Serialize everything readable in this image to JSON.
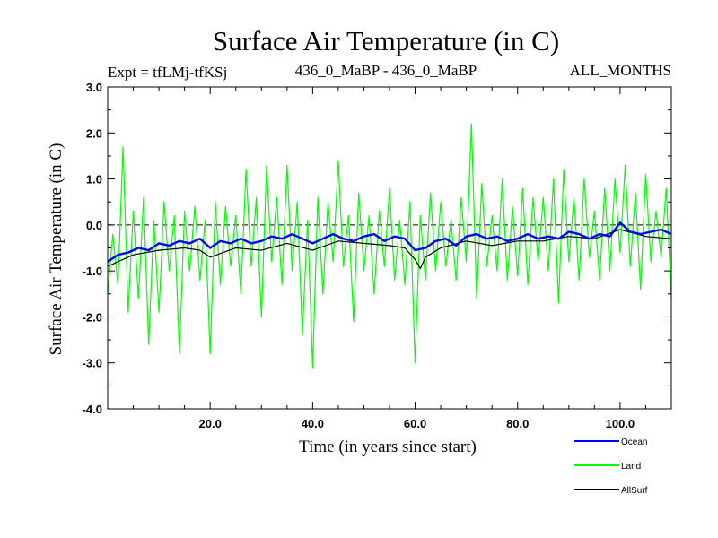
{
  "chart_data": {
    "type": "line",
    "title": "Surface Air Temperature (in C)",
    "subtitle_left": "Expt = tfLMj-tfKSj",
    "subtitle_center": "436_0_MaBP - 436_0_MaBP",
    "subtitle_right": "ALL_MONTHS",
    "xlabel": "Time (in years since start)",
    "ylabel": "Surface Air Temperature (in C)",
    "xlim": [
      0,
      110
    ],
    "ylim": [
      -4.0,
      3.0
    ],
    "xticks": [
      20,
      40,
      60,
      80,
      100
    ],
    "xtick_labels": [
      "20.0",
      "40.0",
      "60.0",
      "80.0",
      "100.0"
    ],
    "yticks": [
      -4,
      -3,
      -2,
      -1,
      0,
      1,
      2,
      3
    ],
    "ytick_labels": [
      "-4.0",
      "-3.0",
      "-2.0",
      "-1.0",
      "0.0",
      "1.0",
      "2.0",
      "3.0"
    ],
    "reference_line": 0.0,
    "series": [
      {
        "name": "Land",
        "color": "#00ff00",
        "x": [
          0,
          1,
          2,
          3,
          4,
          5,
          6,
          7,
          8,
          9,
          10,
          11,
          12,
          13,
          14,
          15,
          16,
          17,
          18,
          19,
          20,
          21,
          22,
          23,
          24,
          25,
          26,
          27,
          28,
          29,
          30,
          31,
          32,
          33,
          34,
          35,
          36,
          37,
          38,
          39,
          40,
          41,
          42,
          43,
          44,
          45,
          46,
          47,
          48,
          49,
          50,
          51,
          52,
          53,
          54,
          55,
          56,
          57,
          58,
          59,
          60,
          61,
          62,
          63,
          64,
          65,
          66,
          67,
          68,
          69,
          70,
          71,
          72,
          73,
          74,
          75,
          76,
          77,
          78,
          79,
          80,
          81,
          82,
          83,
          84,
          85,
          86,
          87,
          88,
          89,
          90,
          91,
          92,
          93,
          94,
          95,
          96,
          97,
          98,
          99,
          100,
          101,
          102,
          103,
          104,
          105,
          106,
          107,
          108,
          109,
          110
        ],
        "values": [
          -1.5,
          -0.2,
          -1.3,
          1.7,
          -1.9,
          0.3,
          -1.6,
          0.6,
          -2.6,
          0.1,
          -1.9,
          0.5,
          -1.0,
          0.2,
          -2.8,
          0.3,
          -1.0,
          0.4,
          -1.2,
          0.1,
          -2.8,
          0.5,
          -1.3,
          0.4,
          -0.9,
          0.2,
          -1.5,
          1.2,
          -0.9,
          0.6,
          -2.0,
          1.3,
          -0.8,
          0.6,
          -1.3,
          1.3,
          -1.0,
          0.5,
          -2.4,
          0.1,
          -3.1,
          0.6,
          -1.5,
          0.5,
          -0.8,
          1.4,
          -0.9,
          0.2,
          -2.1,
          0.7,
          -1.0,
          0.2,
          -1.5,
          0.3,
          -0.9,
          0.8,
          -1.2,
          0.1,
          -1.3,
          0.5,
          -3.0,
          0.2,
          -1.2,
          0.7,
          -1.0,
          0.5,
          -0.9,
          0.1,
          -1.2,
          0.6,
          -0.8,
          2.2,
          -1.6,
          0.9,
          -0.9,
          0.2,
          -1.0,
          1.0,
          -1.2,
          0.4,
          -1.1,
          0.8,
          -1.3,
          0.6,
          -0.8,
          0.6,
          -1.0,
          1.0,
          -1.7,
          1.2,
          -0.8,
          0.6,
          -1.2,
          1.0,
          -0.7,
          0.3,
          -1.2,
          0.8,
          -1.0,
          1.0,
          -0.6,
          1.3,
          -0.9,
          0.7,
          -1.4,
          1.1,
          -0.8,
          0.3,
          -0.7,
          0.8,
          -1.6
        ]
      },
      {
        "name": "AllSurf",
        "color": "#000000",
        "x": [
          0,
          5,
          10,
          15,
          18,
          20,
          25,
          30,
          35,
          40,
          45,
          50,
          55,
          58,
          60,
          61,
          62,
          65,
          70,
          75,
          80,
          85,
          90,
          95,
          100,
          105,
          110
        ],
        "values": [
          -0.9,
          -0.65,
          -0.55,
          -0.5,
          -0.55,
          -0.7,
          -0.5,
          -0.55,
          -0.4,
          -0.55,
          -0.35,
          -0.4,
          -0.45,
          -0.5,
          -0.75,
          -0.95,
          -0.7,
          -0.5,
          -0.35,
          -0.45,
          -0.35,
          -0.35,
          -0.25,
          -0.3,
          -0.1,
          -0.25,
          -0.3
        ]
      },
      {
        "name": "Ocean",
        "color": "#0000ff",
        "x": [
          0,
          2,
          4,
          6,
          8,
          10,
          12,
          14,
          16,
          18,
          20,
          22,
          24,
          26,
          28,
          30,
          32,
          34,
          36,
          38,
          40,
          42,
          44,
          46,
          48,
          50,
          52,
          54,
          56,
          58,
          60,
          62,
          64,
          66,
          68,
          70,
          72,
          74,
          76,
          78,
          80,
          82,
          84,
          86,
          88,
          90,
          92,
          94,
          96,
          98,
          100,
          102,
          104,
          106,
          108,
          110
        ],
        "values": [
          -0.8,
          -0.65,
          -0.6,
          -0.5,
          -0.55,
          -0.4,
          -0.45,
          -0.35,
          -0.4,
          -0.3,
          -0.5,
          -0.35,
          -0.4,
          -0.3,
          -0.4,
          -0.35,
          -0.25,
          -0.3,
          -0.2,
          -0.3,
          -0.4,
          -0.3,
          -0.2,
          -0.3,
          -0.35,
          -0.25,
          -0.2,
          -0.35,
          -0.25,
          -0.3,
          -0.55,
          -0.5,
          -0.35,
          -0.3,
          -0.45,
          -0.25,
          -0.2,
          -0.3,
          -0.25,
          -0.35,
          -0.3,
          -0.2,
          -0.3,
          -0.25,
          -0.3,
          -0.15,
          -0.2,
          -0.3,
          -0.2,
          -0.25,
          0.05,
          -0.15,
          -0.2,
          -0.15,
          -0.1,
          -0.2
        ]
      }
    ],
    "legend": [
      {
        "name": "Ocean",
        "color": "#0000ff"
      },
      {
        "name": "Land",
        "color": "#00ff00"
      },
      {
        "name": "AllSurf",
        "color": "#000000"
      }
    ],
    "legend_position": "bottom-right"
  }
}
